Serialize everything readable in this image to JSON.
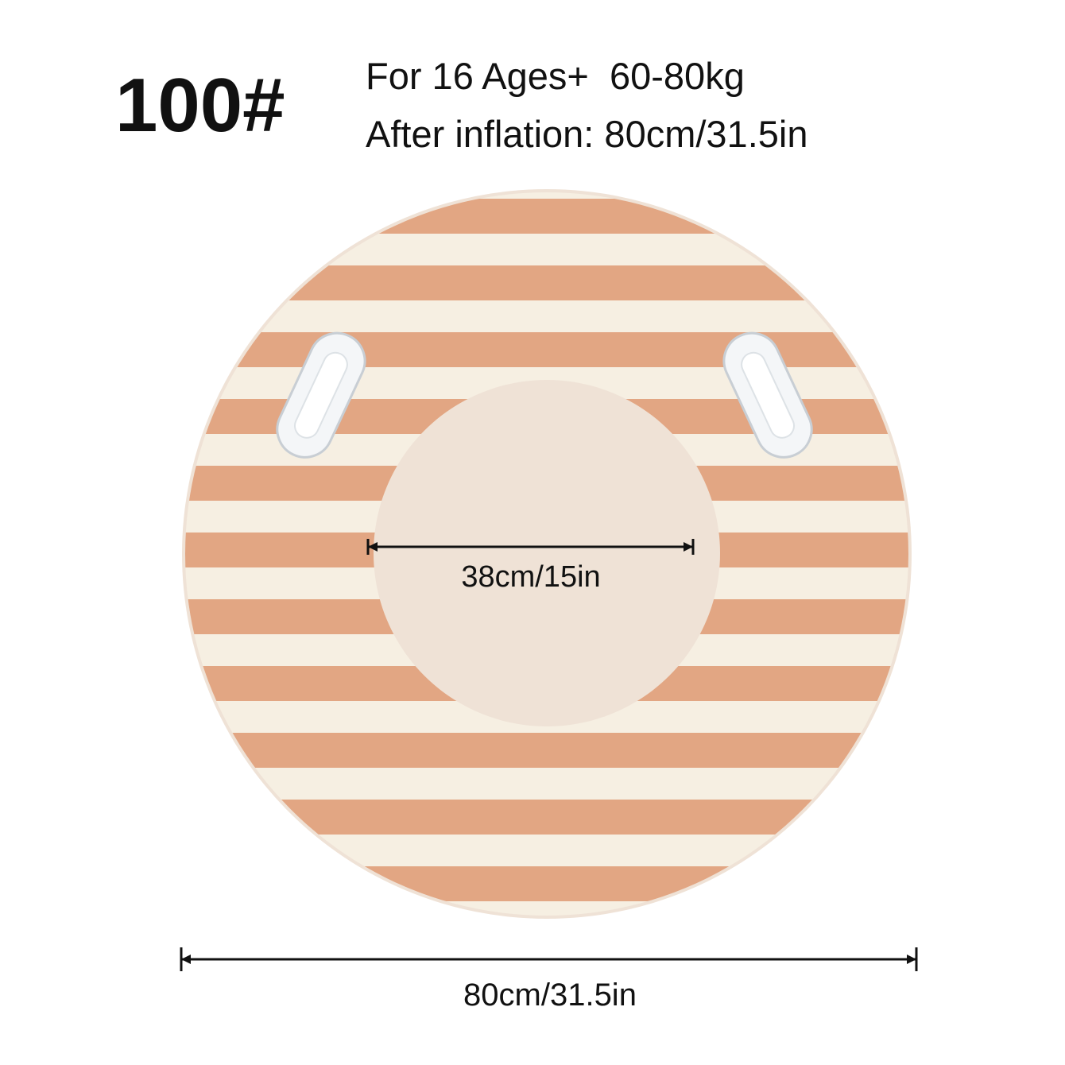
{
  "header": {
    "model": "100#",
    "line1": "For 16 Ages+  60-80kg",
    "line2": "After inflation: 80cm/31.5in"
  },
  "dimensions": {
    "inner": "38cm/15in",
    "outer": "80cm/31.5in"
  }
}
